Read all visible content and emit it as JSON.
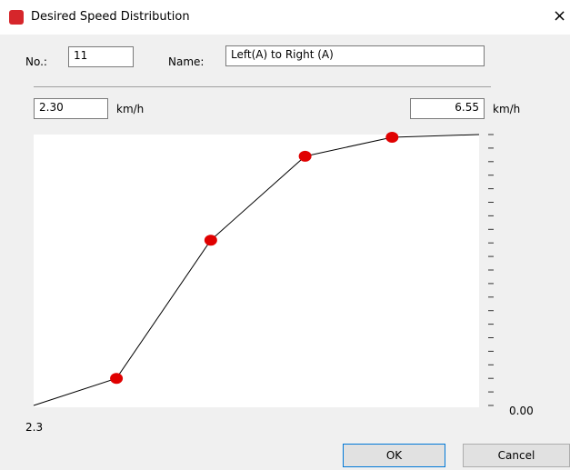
{
  "window": {
    "title": "Desired Speed Distribution",
    "close": "×"
  },
  "fields": {
    "number_label": "No.:",
    "number": "11",
    "name_label": "Name:",
    "name": "Left(A) to Right (A)"
  },
  "range": {
    "min": "2.30",
    "min_unit": "km/h",
    "max": "6.55",
    "max_unit": "km/h"
  },
  "chart_data": {
    "type": "line",
    "x": [
      2.3,
      3.09,
      3.99,
      4.89,
      5.72,
      6.55
    ],
    "values": [
      0,
      0.1,
      0.61,
      0.92,
      0.99,
      1.0
    ],
    "color": "#000000",
    "marker_color": "#e00000",
    "xlim": [
      2.3,
      6.55
    ],
    "ylim": [
      0,
      1
    ],
    "yticks": [
      0,
      0.05,
      0.1,
      0.15,
      0.2,
      0.25,
      0.3,
      0.35,
      0.4,
      0.45,
      0.5,
      0.55,
      0.6,
      0.65,
      0.7,
      0.75,
      0.8,
      0.85,
      0.9,
      0.95,
      1.0
    ],
    "y_label": {
      "value": 0,
      "label": "0.00"
    },
    "x_label": "2.3"
  },
  "buttons": {
    "ok": "OK",
    "cancel": "Cancel"
  }
}
